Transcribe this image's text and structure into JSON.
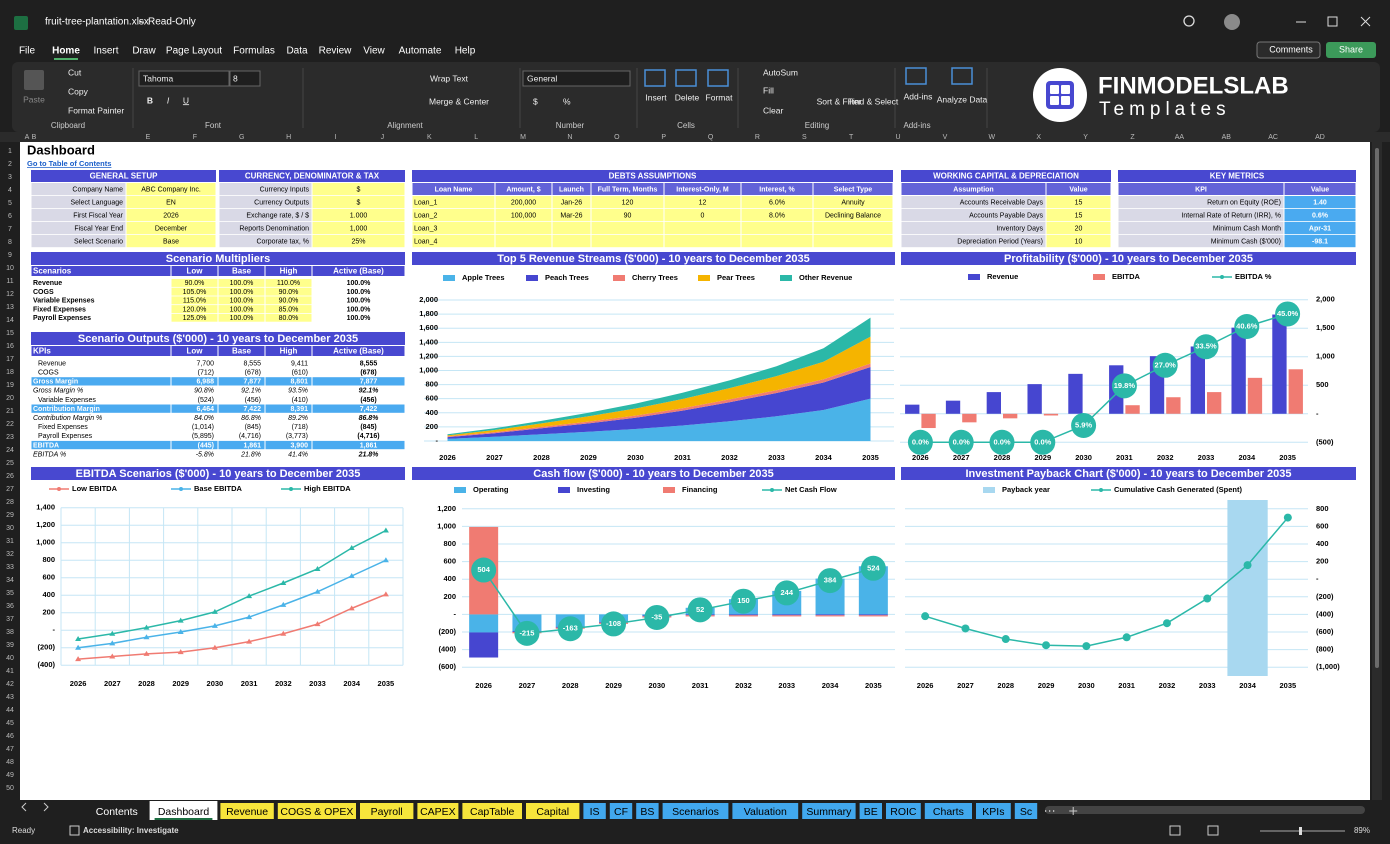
{
  "window": {
    "file": "fruit-tree-plantation.xlsx",
    "mode": "Read-Only"
  },
  "menu": [
    "File",
    "Home",
    "Insert",
    "Draw",
    "Page Layout",
    "Formulas",
    "Data",
    "Review",
    "View",
    "Automate",
    "Help"
  ],
  "actions": [
    "Comments",
    "Share"
  ],
  "ribbon": [
    {
      "label": "Clipboard",
      "items": [
        "Paste",
        "Cut",
        "Copy",
        "Format Painter"
      ]
    },
    {
      "label": "Font",
      "items": [
        "Tahoma",
        "8",
        "B",
        "I",
        "U"
      ]
    },
    {
      "label": "Alignment",
      "items": [
        "Wrap Text",
        "Merge & Center"
      ]
    },
    {
      "label": "Number",
      "items": [
        "General",
        "$",
        "%"
      ]
    },
    {
      "label": "Cells",
      "items": [
        "Insert",
        "Delete",
        "Format"
      ]
    },
    {
      "label": "Editing",
      "items": [
        "AutoSum",
        "Fill",
        "Clear",
        "Sort & Filter",
        "Find & Select"
      ]
    },
    {
      "label": "Add-ins",
      "items": [
        "Add-ins",
        "Analyze Data"
      ]
    }
  ],
  "logo": {
    "name": "FINMODELSLAB",
    "tagline": "Templates"
  },
  "columns": [
    "A",
    "B",
    "E",
    "F",
    "G",
    "H",
    "I",
    "J",
    "K",
    "L",
    "M",
    "N",
    "O",
    "P",
    "Q",
    "R",
    "S",
    "T",
    "U",
    "V",
    "W",
    "X",
    "Y",
    "Z",
    "AA",
    "AB",
    "AC",
    "AD"
  ],
  "rows": [
    1,
    2,
    3,
    4,
    5,
    6,
    7,
    8,
    9,
    10,
    11,
    12,
    13,
    14,
    15,
    16,
    17,
    18,
    19,
    20,
    21,
    22,
    23,
    24,
    25,
    26,
    27,
    28,
    29,
    30,
    31,
    32,
    33,
    34,
    35,
    36,
    37,
    38,
    39,
    40,
    41,
    42,
    43,
    44,
    45,
    46,
    47,
    48,
    49,
    50
  ],
  "sheet": {
    "title": "Dashboard",
    "link": "Go to Table of Contents",
    "tables": [
      {
        "title": "GENERAL SETUP",
        "rows": [
          [
            "Company Name",
            "ABC Company Inc."
          ],
          [
            "Select Language",
            "EN"
          ],
          [
            "First Fiscal Year",
            "2026"
          ],
          [
            "Fiscal Year End",
            "December"
          ],
          [
            "Select Scenario",
            "Base"
          ]
        ]
      },
      {
        "title": "CURRENCY, DENOMINATOR & TAX",
        "rows": [
          [
            "Currency Inputs",
            "$"
          ],
          [
            "Currency Outputs",
            "$"
          ],
          [
            "Exchange rate, $ / $",
            "1.000"
          ],
          [
            "Reports Denomination",
            "1,000"
          ],
          [
            "Corporate tax, %",
            "25%"
          ]
        ]
      },
      {
        "title": "DEBTS ASSUMPTIONS",
        "header": [
          "Loan Name",
          "Amount, $",
          "Launch",
          "Full Term, Months",
          "Interest-Only, M",
          "Interest, %",
          "Select Type"
        ],
        "rows": [
          [
            "Loan_1",
            "200,000",
            "Jan-26",
            "120",
            "12",
            "6.0%",
            "Annuity"
          ],
          [
            "Loan_2",
            "100,000",
            "Mar-26",
            "90",
            "0",
            "8.0%",
            "Declining Balance"
          ],
          [
            "Loan_3"
          ],
          [
            "Loan_4"
          ]
        ]
      },
      {
        "title": "WORKING CAPITAL & DEPRECIATION",
        "header": [
          "Assumption",
          "Value"
        ],
        "rows": [
          [
            "Accounts Receivable Days",
            "15"
          ],
          [
            "Accounts Payable Days",
            "15"
          ],
          [
            "Inventory Days",
            "20"
          ],
          [
            "Depreciation Period (Years)",
            "10"
          ]
        ]
      },
      {
        "title": "KEY METRICS",
        "header": [
          "KPI",
          "Value"
        ],
        "rows": [
          [
            "Return on Equity (ROE)",
            "1.40"
          ],
          [
            "Internal Rate of Return (IRR), %",
            "0.6%"
          ],
          [
            "Minimum Cash Month",
            "Apr-31"
          ],
          [
            "Minimum Cash ($'000)",
            "-98.1"
          ]
        ]
      },
      {
        "title": "Scenario Multipliers",
        "header": [
          "Scenarios",
          "Low",
          "Base",
          "High",
          "Active (Base)"
        ],
        "rows": [
          [
            "Revenue",
            "90.0%",
            "100.0%",
            "110.0%",
            "100.0%"
          ],
          [
            "COGS",
            "105.0%",
            "100.0%",
            "90.0%",
            "100.0%"
          ],
          [
            "Variable Expenses",
            "115.0%",
            "100.0%",
            "90.0%",
            "100.0%"
          ],
          [
            "Fixed Expenses",
            "120.0%",
            "100.0%",
            "85.0%",
            "100.0%"
          ],
          [
            "Payroll Expenses",
            "125.0%",
            "100.0%",
            "80.0%",
            "100.0%"
          ]
        ]
      },
      {
        "title": "Scenario Outputs ($'000) - 10 years to December 2035",
        "header": [
          "KPIs",
          "Low",
          "Base",
          "High",
          "Active (Base)"
        ],
        "rows": [
          [
            "Revenue",
            "7,700",
            "8,555",
            "9,411",
            "8,555"
          ],
          [
            "COGS",
            "(712)",
            "(678)",
            "(610)",
            "(678)"
          ],
          [
            "Gross Margin",
            "6,988",
            "7,877",
            "8,801",
            "7,877"
          ],
          [
            "Gross Margin %",
            "90.8%",
            "92.1%",
            "93.5%",
            "92.1%"
          ],
          [
            "Variable Expenses",
            "(524)",
            "(456)",
            "(410)",
            "(456)"
          ],
          [
            "Contribution Margin",
            "6,464",
            "7,422",
            "8,391",
            "7,422"
          ],
          [
            "Contribution Margin %",
            "84.0%",
            "86.8%",
            "89.2%",
            "86.8%"
          ],
          [
            "Fixed Expenses",
            "(1,014)",
            "(845)",
            "(718)",
            "(845)"
          ],
          [
            "Payroll Expenses",
            "(5,895)",
            "(4,716)",
            "(3,773)",
            "(4,716)"
          ],
          [
            "EBITDA",
            "(445)",
            "1,861",
            "3,900",
            "1,861"
          ],
          [
            "EBITDA %",
            "-5.8%",
            "21.8%",
            "41.4%",
            "21.8%"
          ]
        ]
      }
    ]
  },
  "chart_data": [
    {
      "type": "area",
      "stacked": true,
      "title": "Top 5 Revenue Streams ($'000) - 10 years to December 2035",
      "categories": [
        "2026",
        "2027",
        "2028",
        "2029",
        "2030",
        "2031",
        "2032",
        "2033",
        "2034",
        "2035"
      ],
      "series": [
        {
          "name": "Apple Trees",
          "color": "#4ab3e8",
          "values": [
            30,
            60,
            95,
            130,
            170,
            220,
            280,
            350,
            440,
            600
          ]
        },
        {
          "name": "Peach Trees",
          "color": "#4646d0",
          "values": [
            25,
            50,
            85,
            120,
            160,
            210,
            270,
            330,
            390,
            450
          ]
        },
        {
          "name": "Cherry Trees",
          "color": "#f07b72",
          "values": [
            10,
            15,
            20,
            25,
            30,
            35,
            40,
            40,
            45,
            50
          ]
        },
        {
          "name": "Pear Trees",
          "color": "#f5b400",
          "values": [
            15,
            30,
            50,
            75,
            100,
            130,
            160,
            200,
            250,
            380
          ]
        },
        {
          "name": "Other Revenue",
          "color": "#2bb8a8",
          "values": [
            15,
            25,
            35,
            50,
            70,
            90,
            110,
            140,
            190,
            270
          ]
        }
      ],
      "ylim": [
        -100,
        2100
      ],
      "yticks": [
        {
          "value": 0,
          "label": "-"
        },
        200,
        400,
        600,
        800,
        {
          "value": 1000,
          "label": "1,000"
        },
        {
          "value": 1200,
          "label": "1,200"
        },
        {
          "value": 1400,
          "label": "1,400"
        },
        {
          "value": 1600,
          "label": "1,600"
        },
        {
          "value": 1800,
          "label": "1,800"
        },
        {
          "value": 2000,
          "label": "2,000"
        }
      ],
      "grid": true,
      "y_axis_side": "left"
    },
    {
      "type": "bar",
      "title": "Profitability ($'000) - 10 years to December 2035",
      "categories": [
        "2026",
        "2027",
        "2028",
        "2029",
        "2030",
        "2031",
        "2032",
        "2033",
        "2034",
        "2035"
      ],
      "series": [
        {
          "name": "Revenue",
          "color": "#4646d0",
          "values": [
            160,
            230,
            380,
            520,
            700,
            850,
            1010,
            1180,
            1510,
            1740
          ]
        },
        {
          "name": "EBITDA",
          "color": "#f07b72",
          "values": [
            -250,
            -150,
            -80,
            -30,
            -5,
            150,
            290,
            380,
            630,
            780
          ]
        },
        {
          "name": "EBITDA %",
          "type": "line",
          "axis": "y2",
          "marker": "label",
          "color": "#2bb8a8",
          "values": [
            0,
            0,
            0,
            0,
            5.9,
            19.8,
            27.0,
            33.5,
            40.6,
            45.0
          ],
          "value_labels": [
            "0.0%",
            "0.0%",
            "0.0%",
            "0.0%",
            "5.9%",
            "19.8%",
            "27.0%",
            "33.5%",
            "40.6%",
            "45.0%"
          ]
        }
      ],
      "ylim": [
        -600,
        2100
      ],
      "yticks": [
        {
          "value": -500,
          "label": "(500)"
        },
        {
          "value": 0,
          "label": "-"
        },
        500,
        {
          "value": 1000,
          "label": "1,000"
        },
        {
          "value": 1500,
          "label": "1,500"
        },
        {
          "value": 2000,
          "label": "2,000"
        }
      ],
      "y2lim": [
        -2,
        52
      ],
      "grid": true,
      "y_axis_side": "right"
    },
    {
      "type": "line",
      "title": "EBITDA Scenarios ($'000) - 10 years to December 2035",
      "categories": [
        "2026",
        "2027",
        "2028",
        "2029",
        "2030",
        "2031",
        "2032",
        "2033",
        "2034",
        "2035"
      ],
      "series": [
        {
          "name": "Low EBITDA",
          "color": "#f07b72",
          "marker": "triangle",
          "values": [
            -330,
            -300,
            -270,
            -250,
            -200,
            -130,
            -40,
            70,
            250,
            410
          ]
        },
        {
          "name": "Base EBITDA",
          "color": "#4ab3e8",
          "marker": "triangle",
          "values": [
            -200,
            -150,
            -80,
            -20,
            50,
            150,
            290,
            440,
            620,
            800
          ]
        },
        {
          "name": "High EBITDA",
          "color": "#2bb8a8",
          "marker": "triangle",
          "values": [
            -100,
            -40,
            30,
            110,
            210,
            390,
            540,
            700,
            940,
            1140
          ]
        }
      ],
      "ylim": [
        -500,
        1500
      ],
      "yticks": [
        {
          "value": -400,
          "label": "(400)"
        },
        {
          "value": -200,
          "label": "(200)"
        },
        {
          "value": 0,
          "label": "-"
        },
        200,
        400,
        600,
        800,
        {
          "value": 1000,
          "label": "1,000"
        },
        {
          "value": 1200,
          "label": "1,200"
        },
        {
          "value": 1400,
          "label": "1,400"
        }
      ],
      "grid": "both",
      "y_axis_side": "left"
    },
    {
      "type": "bar",
      "stacked": true,
      "title": "Cash flow ($'000) - 10 years to December 2035",
      "categories": [
        "2026",
        "2027",
        "2028",
        "2029",
        "2030",
        "2031",
        "2032",
        "2033",
        "2034",
        "2035"
      ],
      "series": [
        {
          "name": "Operating",
          "color": "#4ab3e8",
          "values": [
            -205,
            -190,
            -140,
            -85,
            -12,
            75,
            173,
            267,
            407,
            547
          ]
        },
        {
          "name": "Investing",
          "color": "#4646d0",
          "values": [
            -285,
            -10,
            -10,
            -10,
            -10,
            -10,
            -10,
            -10,
            -10,
            -10
          ]
        },
        {
          "name": "Financing",
          "color": "#f07b72",
          "values": [
            994,
            -15,
            -13,
            -13,
            -13,
            -13,
            -13,
            -13,
            -13,
            -13
          ]
        },
        {
          "name": "Net Cash Flow",
          "type": "line",
          "marker": "label",
          "color": "#2bb8a8",
          "values": [
            504,
            -215,
            -163,
            -108,
            -35,
            52,
            150,
            244,
            384,
            524
          ]
        }
      ],
      "ylim": [
        -700,
        1300
      ],
      "yticks": [
        {
          "value": -600,
          "label": "(600)"
        },
        {
          "value": -400,
          "label": "(400)"
        },
        {
          "value": -200,
          "label": "(200)"
        },
        {
          "value": 0,
          "label": "-"
        },
        200,
        400,
        600,
        800,
        {
          "value": 1000,
          "label": "1,000"
        },
        {
          "value": 1200,
          "label": "1,200"
        }
      ],
      "grid": true,
      "y_axis_side": "left"
    },
    {
      "type": "line",
      "title": "Investment Payback Chart ($'000) - 10 years to December 2035",
      "categories": [
        "2026",
        "2027",
        "2028",
        "2029",
        "2030",
        "2031",
        "2032",
        "2033",
        "2034",
        "2035"
      ],
      "series": [
        {
          "name": "Payback year",
          "type": "bar",
          "axis": "y2",
          "color": "#a8d8f0",
          "values": [
            0,
            0,
            0,
            0,
            0,
            0,
            0,
            0,
            1,
            0
          ]
        },
        {
          "name": "Cumulative Cash Generated (Spent)",
          "marker": "circle",
          "color": "#2bb8a8",
          "values": [
            -420,
            -560,
            -680,
            -750,
            -760,
            -660,
            -500,
            -220,
            160,
            700
          ]
        }
      ],
      "ylim": [
        -1100,
        900
      ],
      "yticks": [
        {
          "value": -1000,
          "label": "(1,000)"
        },
        {
          "value": -800,
          "label": "(800)"
        },
        {
          "value": -600,
          "label": "(600)"
        },
        {
          "value": -400,
          "label": "(400)"
        },
        {
          "value": -200,
          "label": "(200)"
        },
        {
          "value": 0,
          "label": "-"
        },
        200,
        400,
        600,
        800
      ],
      "y2lim": [
        0,
        1
      ],
      "grid": true,
      "y_axis_side": "right"
    }
  ],
  "tabs": [
    {
      "name": "Contents"
    },
    {
      "name": "Dashboard"
    },
    {
      "name": "Revenue",
      "color": "#f7e53b"
    },
    {
      "name": "COGS & OPEX",
      "color": "#f7e53b"
    },
    {
      "name": "Payroll",
      "color": "#f7e53b"
    },
    {
      "name": "CAPEX",
      "color": "#f7e53b"
    },
    {
      "name": "CapTable",
      "color": "#f7e53b"
    },
    {
      "name": "Capital",
      "color": "#f7e53b"
    },
    {
      "name": "IS",
      "color": "#41a8ee"
    },
    {
      "name": "CF",
      "color": "#41a8ee"
    },
    {
      "name": "BS",
      "color": "#41a8ee"
    },
    {
      "name": "Scenarios",
      "color": "#41a8ee"
    },
    {
      "name": "Valuation",
      "color": "#41a8ee"
    },
    {
      "name": "Summary",
      "color": "#41a8ee"
    },
    {
      "name": "BE",
      "color": "#41a8ee"
    },
    {
      "name": "ROIC",
      "color": "#41a8ee"
    },
    {
      "name": "Charts",
      "color": "#41a8ee"
    },
    {
      "name": "KPIs",
      "color": "#41a8ee"
    },
    {
      "name": "Sc",
      "color": "#41a8ee"
    }
  ],
  "status": {
    "ready": "Ready",
    "accessibility": "Accessibility: Investigate",
    "zoom": "89%"
  }
}
